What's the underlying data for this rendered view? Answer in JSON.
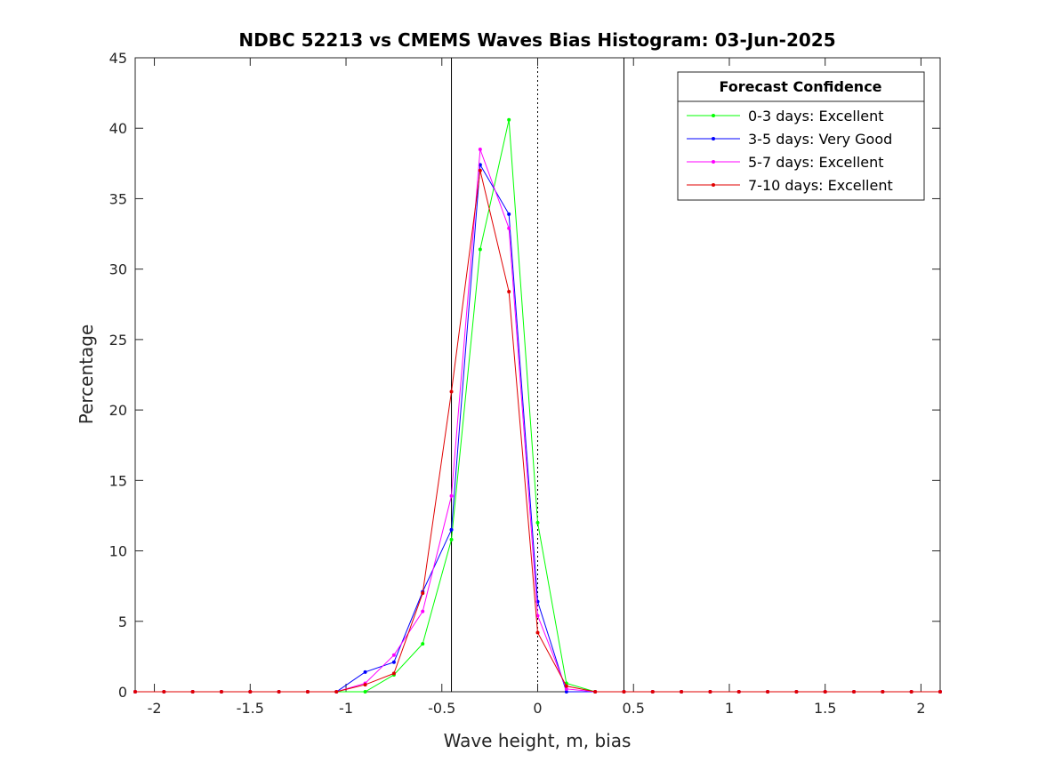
{
  "chart_data": {
    "type": "line",
    "title": "NDBC 52213 vs CMEMS Waves Bias Histogram: 03-Jun-2025",
    "xlabel": "Wave height, m, bias",
    "ylabel": "Percentage",
    "xlim": [
      -2.1,
      2.1
    ],
    "ylim": [
      0,
      45
    ],
    "xticks": [
      -2,
      -1.5,
      -1,
      -0.5,
      0,
      0.5,
      1,
      1.5,
      2
    ],
    "xtick_labels": [
      "-2",
      "-1.5",
      "-1",
      "-0.5",
      "0",
      "0.5",
      "1",
      "1.5",
      "2"
    ],
    "yticks": [
      0,
      5,
      10,
      15,
      20,
      25,
      30,
      35,
      40,
      45
    ],
    "ytick_labels": [
      "0",
      "5",
      "10",
      "15",
      "20",
      "25",
      "30",
      "35",
      "40",
      "45"
    ],
    "grid": false,
    "reference_lines": [
      {
        "x": -0.45,
        "style": "solid"
      },
      {
        "x": 0,
        "style": "dotted"
      },
      {
        "x": 0.45,
        "style": "solid"
      }
    ],
    "legend": {
      "title": "Forecast Confidence",
      "position": "top-right"
    },
    "x": [
      -2.1,
      -1.95,
      -1.8,
      -1.65,
      -1.5,
      -1.35,
      -1.2,
      -1.05,
      -0.9,
      -0.75,
      -0.6,
      -0.45,
      -0.3,
      -0.15,
      0,
      0.15,
      0.3,
      0.45,
      0.6,
      0.75,
      0.9,
      1.05,
      1.2,
      1.35,
      1.5,
      1.65,
      1.8,
      1.95,
      2.1
    ],
    "series": [
      {
        "name": "0-3 days: Excellent",
        "color": "#00ff00",
        "values": [
          0,
          0,
          0,
          0,
          0,
          0,
          0,
          0,
          0,
          1.2,
          3.4,
          10.8,
          31.4,
          40.6,
          12.0,
          0.6,
          0,
          0,
          0,
          0,
          0,
          0,
          0,
          0,
          0,
          0,
          0,
          0,
          0
        ]
      },
      {
        "name": "3-5 days: Very Good",
        "color": "#0000ff",
        "values": [
          0,
          0,
          0,
          0,
          0,
          0,
          0,
          0,
          1.4,
          2.1,
          7.1,
          11.5,
          37.4,
          33.9,
          6.4,
          0,
          0,
          0,
          0,
          0,
          0,
          0,
          0,
          0,
          0,
          0,
          0,
          0,
          0
        ]
      },
      {
        "name": "5-7 days: Excellent",
        "color": "#ff00ff",
        "values": [
          0,
          0,
          0,
          0,
          0,
          0,
          0,
          0,
          0.6,
          2.6,
          5.7,
          13.9,
          38.5,
          32.9,
          5.4,
          0.2,
          0,
          0,
          0,
          0,
          0,
          0,
          0,
          0,
          0,
          0,
          0,
          0,
          0
        ]
      },
      {
        "name": "7-10 days: Excellent",
        "color": "#e00000",
        "values": [
          0,
          0,
          0,
          0,
          0,
          0,
          0,
          0,
          0.5,
          1.3,
          7.0,
          21.3,
          37.0,
          28.4,
          4.2,
          0.4,
          0,
          0,
          0,
          0,
          0,
          0,
          0,
          0,
          0,
          0,
          0,
          0,
          0
        ]
      }
    ]
  }
}
